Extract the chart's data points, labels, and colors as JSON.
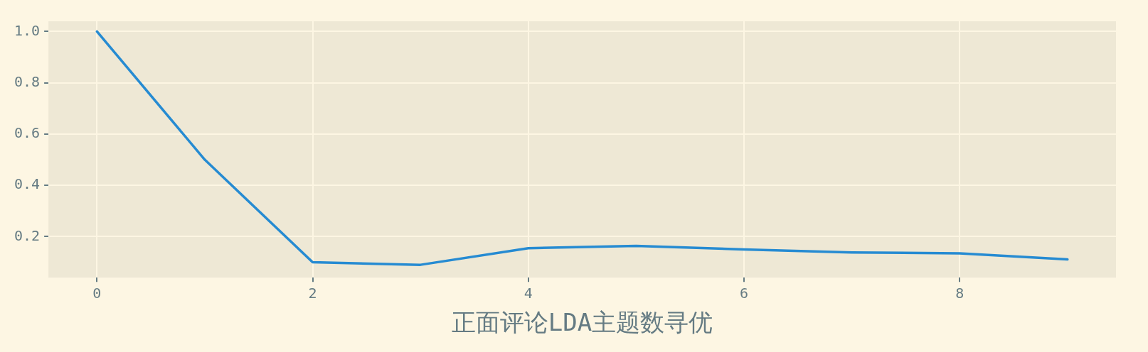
{
  "chart_data": {
    "type": "line",
    "xlabel": "正面评论LDA主题数寻优",
    "x": [
      0,
      1,
      2,
      3,
      4,
      5,
      6,
      7,
      8,
      9
    ],
    "series": [
      {
        "color": "#268bd2",
        "values": [
          1.0,
          0.5,
          0.1,
          0.09,
          0.155,
          0.164,
          0.15,
          0.138,
          0.135,
          0.111
        ]
      }
    ],
    "xlim": [
      -0.45,
      9.45
    ],
    "xticks": [
      0,
      2,
      4,
      6,
      8
    ],
    "ylim": [
      0.04,
      1.04
    ],
    "yticks": [
      {
        "value": 0.2,
        "label": "0.2"
      },
      {
        "value": 0.4,
        "label": "0.4"
      },
      {
        "value": 0.6,
        "label": "0.6"
      },
      {
        "value": 0.8,
        "label": "0.8"
      },
      {
        "value": 1.0,
        "label": "1.0"
      }
    ],
    "grid": true,
    "legend": false,
    "marker": "none",
    "line_style": "solid"
  }
}
